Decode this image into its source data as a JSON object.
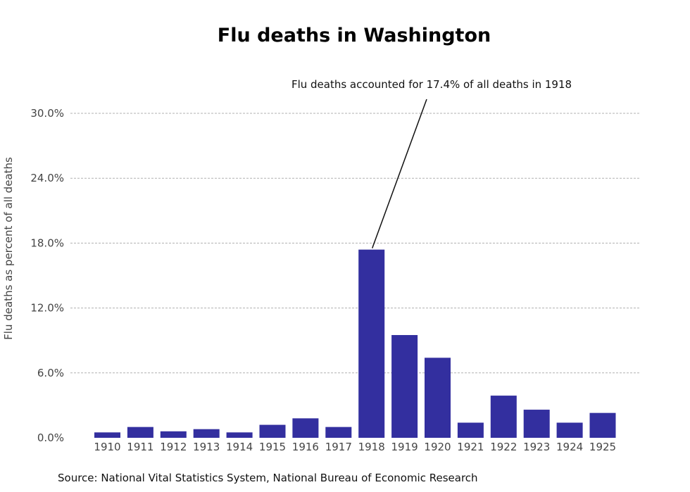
{
  "chart_data": {
    "type": "bar",
    "title": "Flu deaths in Washington",
    "ylabel": "Flu deaths as percent of all deaths",
    "xlabel": "",
    "categories": [
      "1910",
      "1911",
      "1912",
      "1913",
      "1914",
      "1915",
      "1916",
      "1917",
      "1918",
      "1919",
      "1920",
      "1921",
      "1922",
      "1923",
      "1924",
      "1925"
    ],
    "values": [
      0.5,
      1.0,
      0.6,
      0.8,
      0.5,
      1.2,
      1.8,
      1.0,
      17.4,
      9.5,
      7.4,
      1.4,
      3.9,
      2.6,
      1.4,
      2.3
    ],
    "yticks": [
      "0.0%",
      "6.0%",
      "12.0%",
      "18.0%",
      "24.0%",
      "30.0%"
    ],
    "ylim": [
      0,
      30
    ],
    "grid": true,
    "bar_color": "#332f9f",
    "annotation": {
      "text": "Flu deaths accounted for 17.4% of all deaths in 1918",
      "category": "1918",
      "value": 17.4
    },
    "source": "Source: National Vital Statistics System, National Bureau of Economic Research"
  }
}
